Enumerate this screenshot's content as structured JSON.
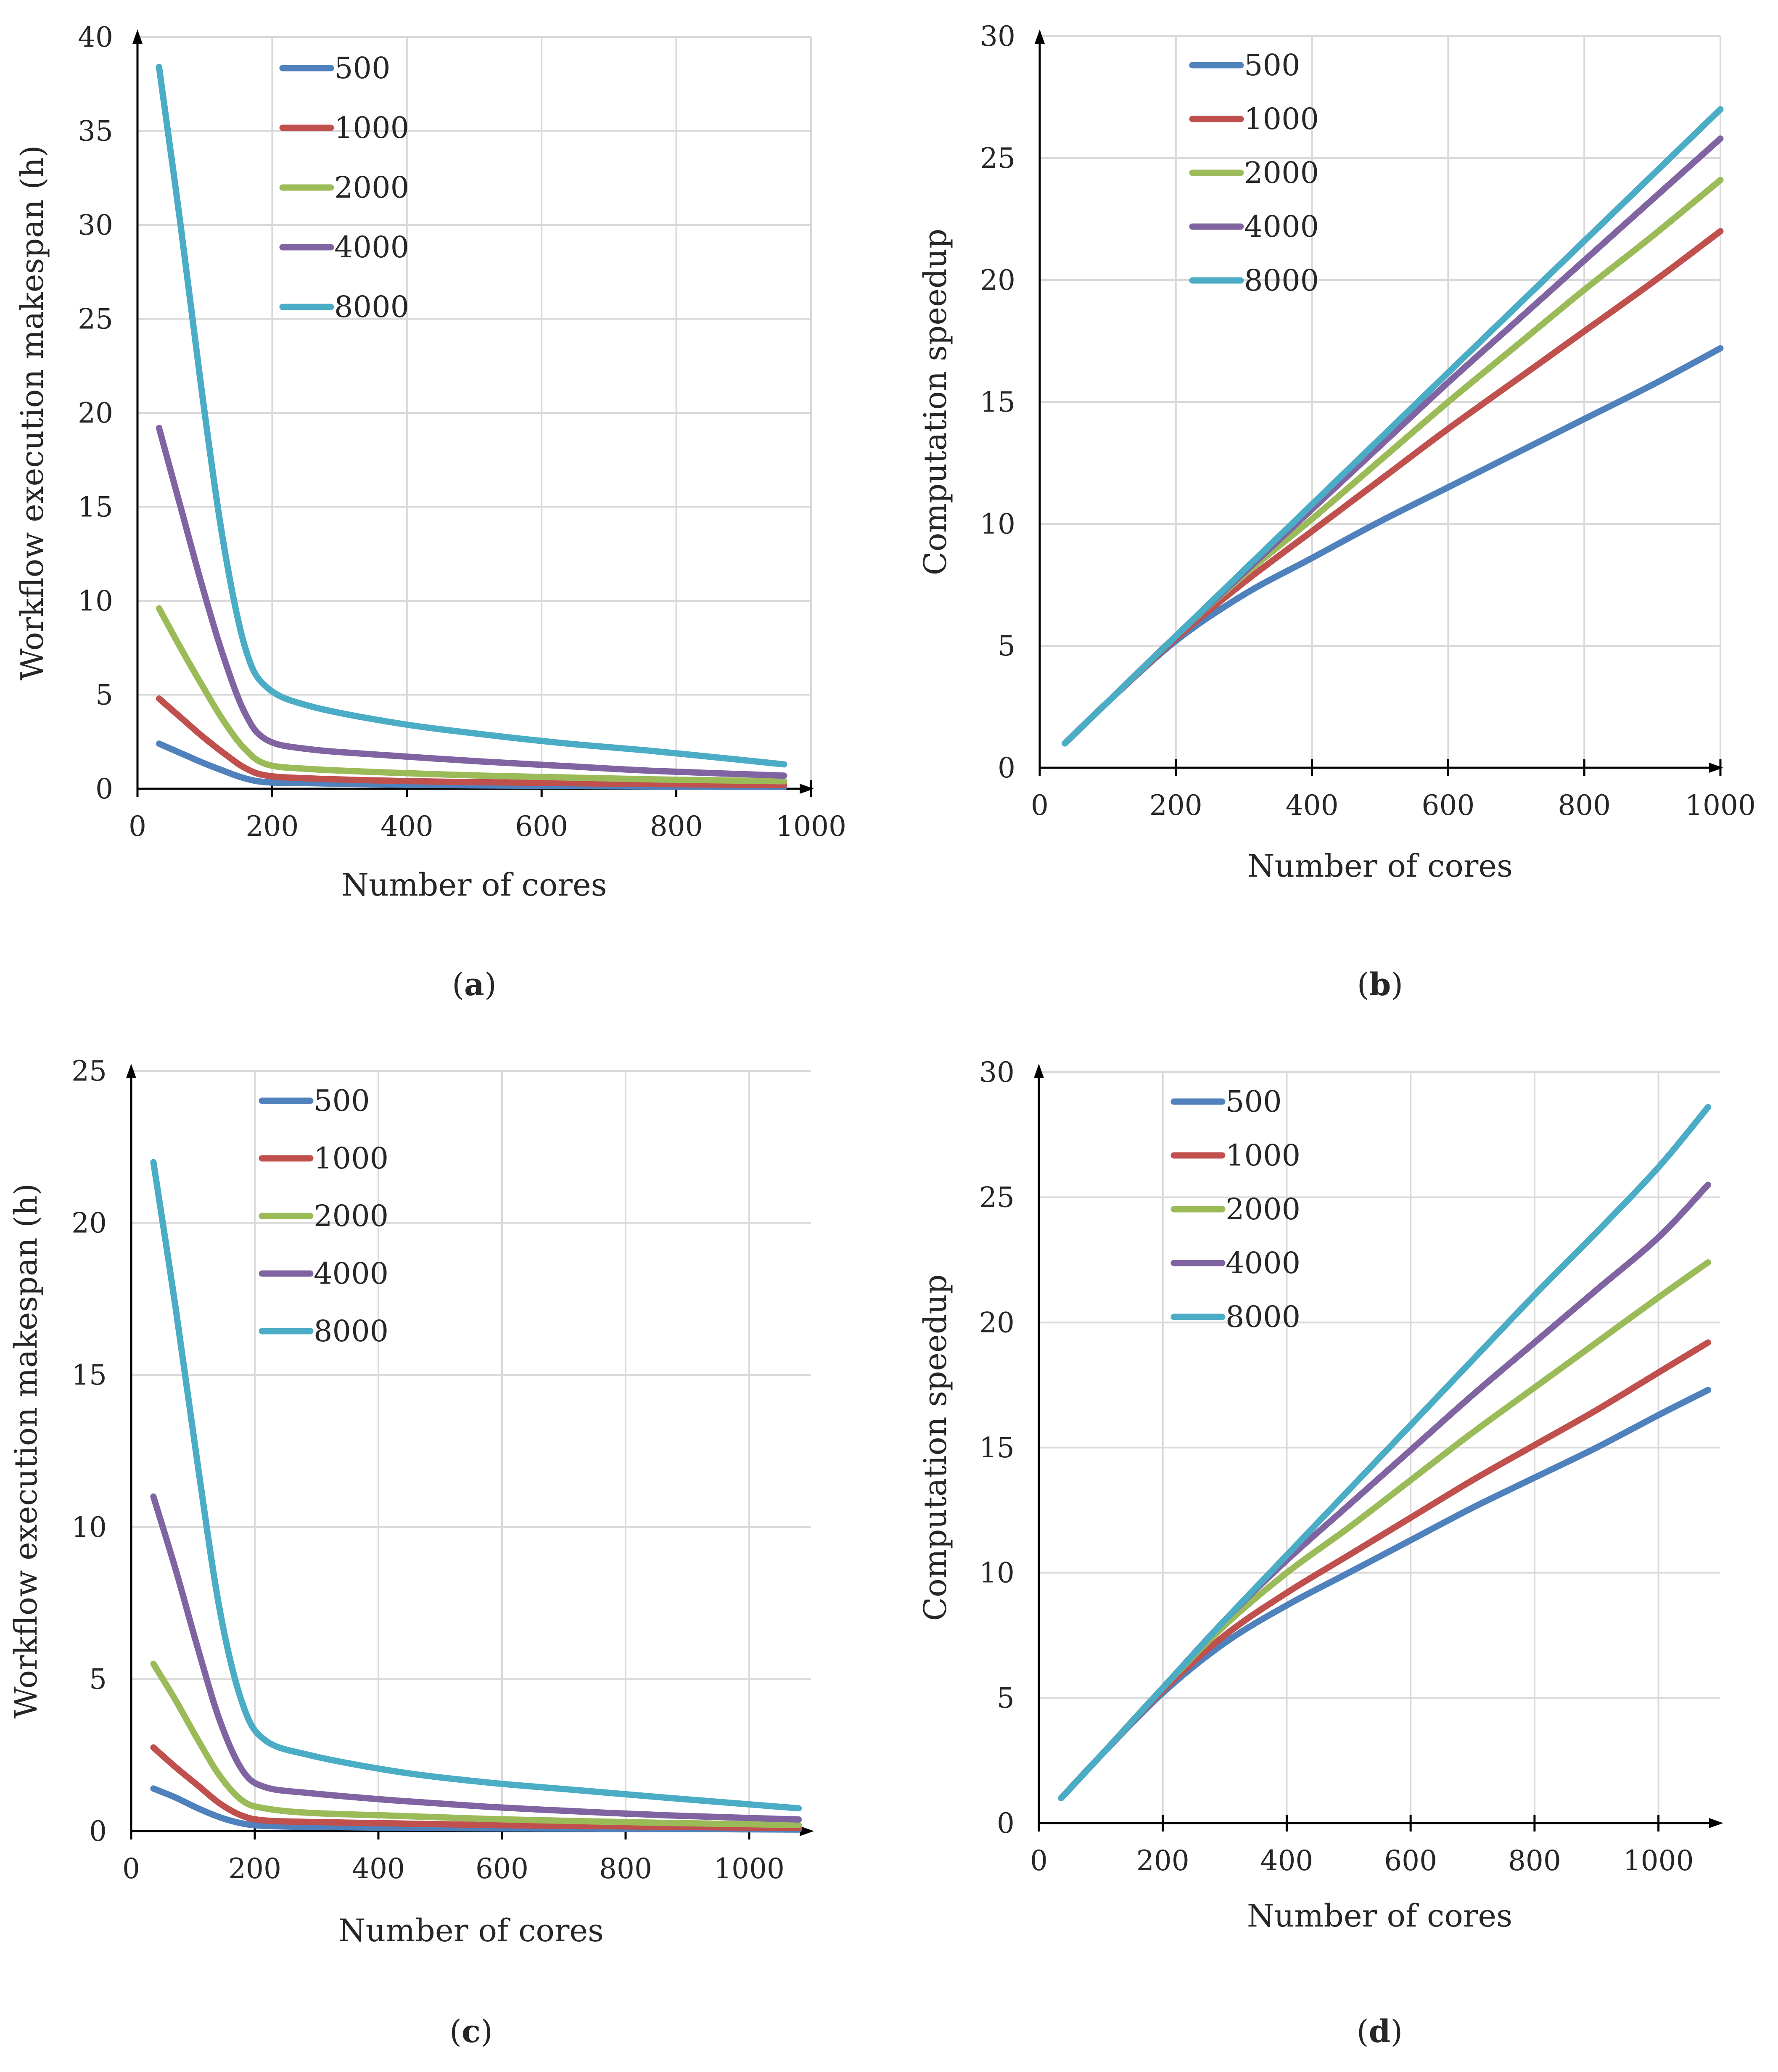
{
  "colors": {
    "s500": "#4f81bd",
    "s1000": "#c0504d",
    "s2000": "#9bbb59",
    "s4000": "#8064a2",
    "s8000": "#4bacc6"
  },
  "chart_data": [
    {
      "id": "a",
      "type": "line",
      "caption_open": "(",
      "caption_letter": "a",
      "caption_close": ")",
      "xlabel": "Number of cores",
      "ylabel": "Workflow execution makespan (h)",
      "xlim": [
        0,
        1000
      ],
      "ylim": [
        0,
        40
      ],
      "xticks": [
        0,
        200,
        400,
        600,
        800,
        1000
      ],
      "xtick_labels": [
        "0",
        "200",
        "400",
        "600",
        "800",
        "1000"
      ],
      "yticks": [
        0,
        5,
        10,
        15,
        20,
        25,
        30,
        35,
        40
      ],
      "ytick_labels": [
        "0",
        "5",
        "10",
        "15",
        "20",
        "25",
        "30",
        "35",
        "40"
      ],
      "grid": true,
      "legend_position": "top-left",
      "series": [
        {
          "name": "500",
          "color_key": "s500",
          "x": [
            32,
            64,
            96,
            128,
            160,
            192,
            256,
            384,
            512,
            640,
            768,
            960
          ],
          "values": [
            2.4,
            1.9,
            1.4,
            0.95,
            0.55,
            0.35,
            0.3,
            0.22,
            0.18,
            0.15,
            0.12,
            0.1
          ]
        },
        {
          "name": "1000",
          "color_key": "s1000",
          "x": [
            32,
            64,
            96,
            128,
            160,
            192,
            256,
            384,
            512,
            640,
            768,
            960
          ],
          "values": [
            4.8,
            3.8,
            2.8,
            1.9,
            1.1,
            0.7,
            0.55,
            0.42,
            0.35,
            0.3,
            0.25,
            0.2
          ]
        },
        {
          "name": "2000",
          "color_key": "s2000",
          "x": [
            32,
            64,
            96,
            128,
            160,
            192,
            256,
            384,
            512,
            640,
            768,
            960
          ],
          "values": [
            9.6,
            7.5,
            5.5,
            3.6,
            2.1,
            1.3,
            1.05,
            0.85,
            0.7,
            0.6,
            0.5,
            0.4
          ]
        },
        {
          "name": "4000",
          "color_key": "s4000",
          "x": [
            32,
            64,
            96,
            128,
            160,
            192,
            256,
            384,
            512,
            640,
            768,
            960
          ],
          "values": [
            19.2,
            15.0,
            10.8,
            7.0,
            4.0,
            2.6,
            2.1,
            1.75,
            1.45,
            1.2,
            0.95,
            0.7
          ]
        },
        {
          "name": "8000",
          "color_key": "s8000",
          "x": [
            32,
            64,
            96,
            128,
            160,
            192,
            256,
            384,
            512,
            640,
            768,
            960
          ],
          "values": [
            38.4,
            30.0,
            21.0,
            13.0,
            7.5,
            5.4,
            4.4,
            3.5,
            2.9,
            2.4,
            2.0,
            1.3
          ]
        }
      ]
    },
    {
      "id": "b",
      "type": "line",
      "caption_open": "(",
      "caption_letter": "b",
      "caption_close": ")",
      "xlabel": "Number of cores",
      "ylabel": "Computation speedup",
      "xlim": [
        0,
        1000
      ],
      "ylim": [
        0,
        30
      ],
      "xticks": [
        0,
        200,
        400,
        600,
        800,
        1000
      ],
      "xtick_labels": [
        "0",
        "200",
        "400",
        "600",
        "800",
        "1000"
      ],
      "yticks": [
        0,
        5,
        10,
        15,
        20,
        25,
        30
      ],
      "ytick_labels": [
        "0",
        "5",
        "10",
        "15",
        "20",
        "25",
        "30"
      ],
      "grid": true,
      "legend_position": "top-left",
      "series": [
        {
          "name": "500",
          "color_key": "s500",
          "x": [
            37,
            100,
            200,
            300,
            400,
            500,
            600,
            700,
            800,
            900,
            1000
          ],
          "values": [
            1.0,
            2.7,
            5.2,
            7.1,
            8.6,
            10.1,
            11.5,
            12.9,
            14.3,
            15.7,
            17.2
          ]
        },
        {
          "name": "1000",
          "color_key": "s1000",
          "x": [
            37,
            100,
            200,
            300,
            400,
            500,
            600,
            700,
            800,
            900,
            1000
          ],
          "values": [
            1.0,
            2.7,
            5.3,
            7.6,
            9.7,
            11.8,
            13.9,
            15.9,
            17.9,
            19.9,
            22.0
          ]
        },
        {
          "name": "2000",
          "color_key": "s2000",
          "x": [
            37,
            100,
            200,
            300,
            400,
            500,
            600,
            700,
            800,
            900,
            1000
          ],
          "values": [
            1.0,
            2.7,
            5.4,
            7.9,
            10.2,
            12.6,
            15.0,
            17.3,
            19.6,
            21.8,
            24.1
          ]
        },
        {
          "name": "4000",
          "color_key": "s4000",
          "x": [
            37,
            100,
            200,
            300,
            400,
            500,
            600,
            700,
            800,
            900,
            1000
          ],
          "values": [
            1.0,
            2.7,
            5.4,
            8.0,
            10.6,
            13.2,
            15.8,
            18.3,
            20.8,
            23.3,
            25.8
          ]
        },
        {
          "name": "8000",
          "color_key": "s8000",
          "x": [
            37,
            100,
            200,
            300,
            400,
            500,
            600,
            700,
            800,
            900,
            1000
          ],
          "values": [
            1.0,
            2.7,
            5.4,
            8.1,
            10.8,
            13.5,
            16.2,
            18.9,
            21.6,
            24.3,
            27.0
          ]
        }
      ]
    },
    {
      "id": "c",
      "type": "line",
      "caption_open": "(",
      "caption_letter": "c",
      "caption_close": ")",
      "xlabel": "Number of cores",
      "ylabel": "Workflow execution makespan (h)",
      "xlim": [
        0,
        1100
      ],
      "ylim": [
        0,
        25
      ],
      "xticks": [
        0,
        200,
        400,
        600,
        800,
        1000
      ],
      "xtick_labels": [
        "0",
        "200",
        "400",
        "600",
        "800",
        "1000"
      ],
      "yticks": [
        0,
        5,
        10,
        15,
        20,
        25
      ],
      "ytick_labels": [
        "0",
        "5",
        "10",
        "15",
        "20",
        "25"
      ],
      "grid": true,
      "legend_position": "top-left",
      "series": [
        {
          "name": "500",
          "color_key": "s500",
          "x": [
            36,
            72,
            108,
            144,
            180,
            216,
            288,
            432,
            576,
            720,
            864,
            1080
          ],
          "values": [
            1.4,
            1.1,
            0.75,
            0.45,
            0.25,
            0.17,
            0.14,
            0.11,
            0.09,
            0.08,
            0.07,
            0.05
          ]
        },
        {
          "name": "1000",
          "color_key": "s1000",
          "x": [
            36,
            72,
            108,
            144,
            180,
            216,
            288,
            432,
            576,
            720,
            864,
            1080
          ],
          "values": [
            2.75,
            2.1,
            1.5,
            0.9,
            0.5,
            0.35,
            0.3,
            0.25,
            0.2,
            0.17,
            0.14,
            0.1
          ]
        },
        {
          "name": "2000",
          "color_key": "s2000",
          "x": [
            36,
            72,
            108,
            144,
            180,
            216,
            288,
            432,
            576,
            720,
            864,
            1080
          ],
          "values": [
            5.5,
            4.3,
            3.0,
            1.8,
            1.0,
            0.75,
            0.6,
            0.5,
            0.4,
            0.33,
            0.27,
            0.2
          ]
        },
        {
          "name": "4000",
          "color_key": "s4000",
          "x": [
            36,
            72,
            108,
            144,
            180,
            216,
            288,
            432,
            576,
            720,
            864,
            1080
          ],
          "values": [
            11.0,
            8.6,
            6.0,
            3.6,
            2.0,
            1.45,
            1.25,
            1.0,
            0.8,
            0.65,
            0.52,
            0.38
          ]
        },
        {
          "name": "8000",
          "color_key": "s8000",
          "x": [
            36,
            72,
            108,
            144,
            180,
            216,
            288,
            432,
            576,
            720,
            864,
            1080
          ],
          "values": [
            22.0,
            17.2,
            12.0,
            7.2,
            4.2,
            3.0,
            2.5,
            1.95,
            1.6,
            1.35,
            1.1,
            0.75
          ]
        }
      ]
    },
    {
      "id": "d",
      "type": "line",
      "caption_open": "(",
      "caption_letter": "d",
      "caption_close": ")",
      "xlabel": "Number of cores",
      "ylabel": "Computation speedup",
      "xlim": [
        0,
        1100
      ],
      "ylim": [
        0,
        30
      ],
      "xticks": [
        0,
        200,
        400,
        600,
        800,
        1000
      ],
      "xtick_labels": [
        "0",
        "200",
        "400",
        "600",
        "800",
        "1000"
      ],
      "yticks": [
        0,
        5,
        10,
        15,
        20,
        25,
        30
      ],
      "ytick_labels": [
        "0",
        "5",
        "10",
        "15",
        "20",
        "25",
        "30"
      ],
      "grid": true,
      "legend_position": "top-left",
      "series": [
        {
          "name": "500",
          "color_key": "s500",
          "x": [
            36,
            100,
            200,
            300,
            400,
            500,
            600,
            700,
            800,
            900,
            1000,
            1080
          ],
          "values": [
            1.0,
            2.7,
            5.2,
            7.2,
            8.7,
            10.0,
            11.3,
            12.6,
            13.8,
            15.0,
            16.3,
            17.3
          ]
        },
        {
          "name": "1000",
          "color_key": "s1000",
          "x": [
            36,
            100,
            200,
            300,
            400,
            500,
            600,
            700,
            800,
            900,
            1000,
            1080
          ],
          "values": [
            1.0,
            2.7,
            5.3,
            7.5,
            9.2,
            10.7,
            12.2,
            13.7,
            15.1,
            16.5,
            18.0,
            19.2
          ]
        },
        {
          "name": "2000",
          "color_key": "s2000",
          "x": [
            36,
            100,
            200,
            300,
            400,
            500,
            600,
            700,
            800,
            900,
            1000,
            1080
          ],
          "values": [
            1.0,
            2.7,
            5.4,
            7.9,
            10.0,
            11.8,
            13.7,
            15.6,
            17.4,
            19.2,
            21.0,
            22.4
          ]
        },
        {
          "name": "4000",
          "color_key": "s4000",
          "x": [
            36,
            100,
            200,
            300,
            400,
            500,
            600,
            700,
            800,
            900,
            1000,
            1080
          ],
          "values": [
            1.0,
            2.7,
            5.4,
            8.1,
            10.5,
            12.7,
            14.9,
            17.1,
            19.2,
            21.3,
            23.4,
            25.5
          ]
        },
        {
          "name": "8000",
          "color_key": "s8000",
          "x": [
            36,
            100,
            200,
            300,
            400,
            500,
            600,
            700,
            800,
            900,
            1000,
            1080
          ],
          "values": [
            1.0,
            2.7,
            5.4,
            8.1,
            10.7,
            13.3,
            15.9,
            18.5,
            21.1,
            23.6,
            26.2,
            28.6
          ]
        }
      ]
    }
  ]
}
